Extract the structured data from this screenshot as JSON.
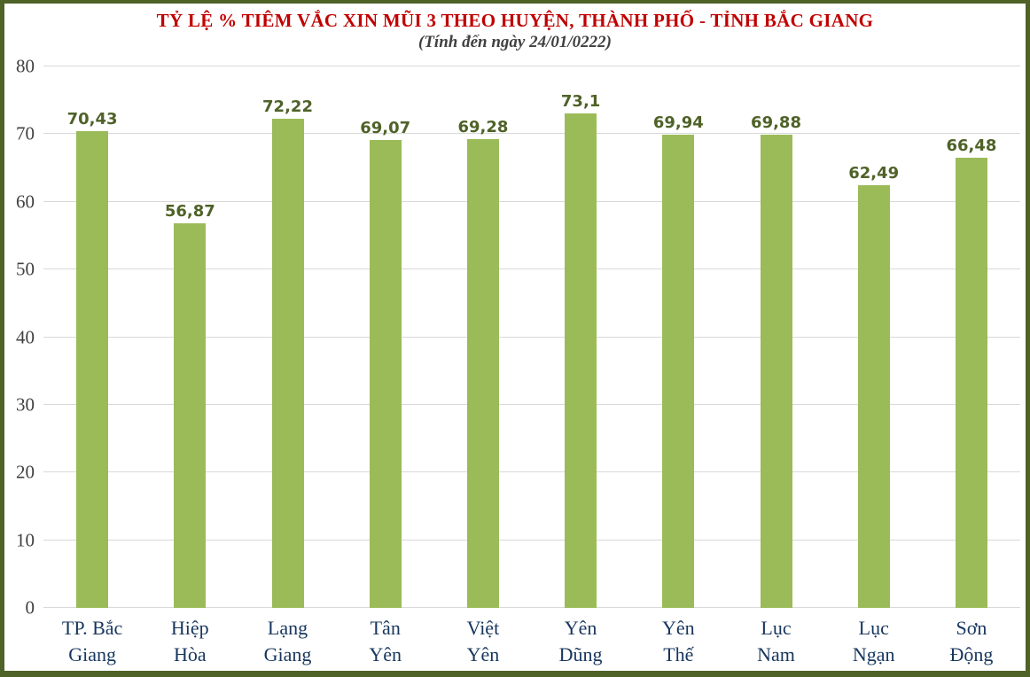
{
  "frame": {
    "border_color": "#4F6228",
    "background_color": "#FFFFFF"
  },
  "header": {
    "title": "TỶ LỆ % TIÊM VẮC XIN MŨI 3 THEO HUYỆN, THÀNH PHỐ - TỈNH BẮC GIANG",
    "subtitle": "(Tính đến ngày 24/01/0222)",
    "title_color": "#C00000",
    "subtitle_color": "#404040"
  },
  "chart_data": {
    "type": "bar",
    "title": "TỶ LỆ % TIÊM VẮC XIN MŨI 3 THEO HUYỆN, THÀNH PHỐ - TỈNH BẮC GIANG",
    "subtitle": "(Tính đến ngày 24/01/0222)",
    "categories": [
      "TP. Bắc Giang",
      "Hiệp Hòa",
      "Lạng Giang",
      "Tân Yên",
      "Việt Yên",
      "Yên Dũng",
      "Yên Thế",
      "Lục Nam",
      "Lục Ngạn",
      "Sơn Động"
    ],
    "category_lines": [
      [
        "TP. Bắc",
        "Giang"
      ],
      [
        "Hiệp",
        "Hòa"
      ],
      [
        "Lạng",
        "Giang"
      ],
      [
        "Tân",
        "Yên"
      ],
      [
        "Việt",
        "Yên"
      ],
      [
        "Yên",
        "Dũng"
      ],
      [
        "Yên",
        "Thế"
      ],
      [
        "Lục",
        "Nam"
      ],
      [
        "Lục",
        "Ngạn"
      ],
      [
        "Sơn",
        "Động"
      ]
    ],
    "values": [
      70.43,
      56.87,
      72.22,
      69.07,
      69.28,
      73.1,
      69.94,
      69.88,
      62.49,
      66.48
    ],
    "value_labels": [
      "70,43",
      "56,87",
      "72,22",
      "69,07",
      "69,28",
      "73,1",
      "69,94",
      "69,88",
      "62,49",
      "66,48"
    ],
    "xlabel": "",
    "ylabel": "",
    "ylim": [
      0,
      80
    ],
    "yticks": [
      0,
      10,
      20,
      30,
      40,
      50,
      60,
      70,
      80
    ],
    "grid": true,
    "legend": false,
    "bar_color": "#9BBB59",
    "value_label_color": "#4F6228",
    "category_label_color": "#17365D",
    "ytick_color": "#404040",
    "gridline_color": "#D9D9D9"
  }
}
